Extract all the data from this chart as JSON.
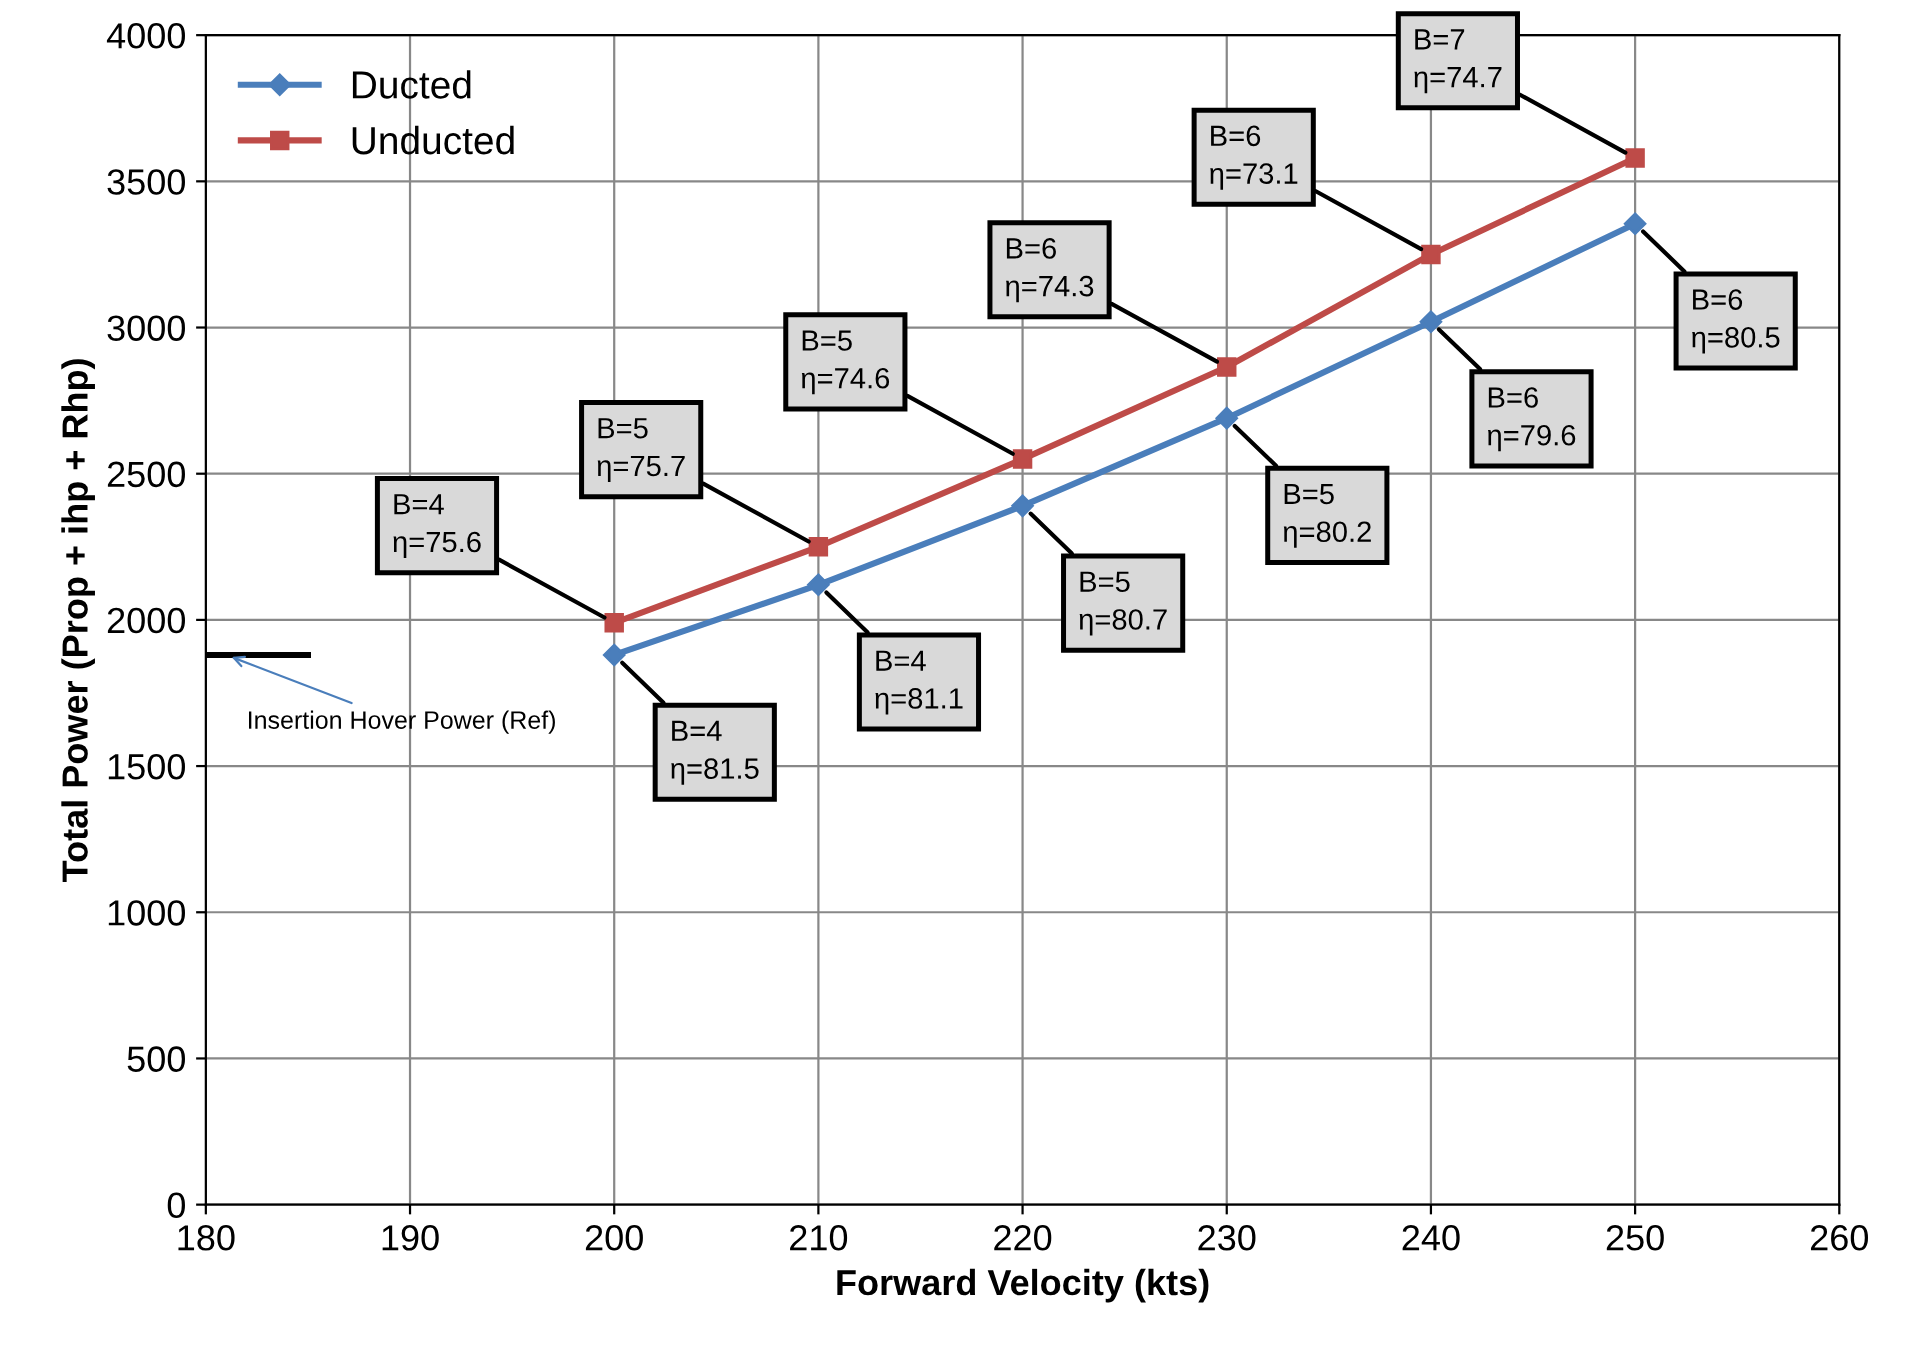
{
  "chart_data": {
    "type": "line",
    "xlabel": "Forward Velocity (kts)",
    "ylabel": "Total Power (Prop + ihp + Rhp)",
    "xlim": [
      180,
      260
    ],
    "xticks": [
      180,
      190,
      200,
      210,
      220,
      230,
      240,
      250,
      260
    ],
    "ylim": [
      0,
      4000
    ],
    "yticks": [
      0,
      500,
      1000,
      1500,
      2000,
      2500,
      3000,
      3500,
      4000
    ],
    "grid": true,
    "legend": "top left",
    "series": [
      {
        "name": "Ducted",
        "color": "#4a7ebb",
        "marker": "diamond",
        "x": [
          200,
          210,
          220,
          230,
          240,
          250
        ],
        "values": [
          1880,
          2120,
          2390,
          2690,
          3020,
          3355
        ]
      },
      {
        "name": "Unducted",
        "color": "#be4b48",
        "marker": "square",
        "x": [
          200,
          210,
          220,
          230,
          240,
          250
        ],
        "values": [
          1990,
          2250,
          2550,
          2865,
          3250,
          3580
        ]
      },
      {
        "color": "#000000",
        "marker": "none",
        "x": [
          180,
          185
        ],
        "values": [
          1880,
          1880
        ]
      }
    ],
    "annotations": [
      {
        "text": "B=4\nη=81.5",
        "x": 200,
        "y": 1880
      },
      {
        "text": "B=4\nη=81.1",
        "x": 210,
        "y": 2120
      },
      {
        "text": "B=5\nη=80.7",
        "x": 220,
        "y": 2390
      },
      {
        "text": "B=5\nη=80.2",
        "x": 230,
        "y": 2690
      },
      {
        "text": "B=6\nη=79.6",
        "x": 240,
        "y": 3020
      },
      {
        "text": "B=6\nη=80.5",
        "x": 250,
        "y": 3355
      },
      {
        "text": "B=4\nη=75.6",
        "x": 200,
        "y": 1990
      },
      {
        "text": "B=5\nη=75.7",
        "x": 210,
        "y": 2250
      },
      {
        "text": "B=5\nη=74.6",
        "x": 220,
        "y": 2550
      },
      {
        "text": "B=6\nη=74.3",
        "x": 230,
        "y": 2865
      },
      {
        "text": "B=6\nη=73.1",
        "x": 240,
        "y": 3250
      },
      {
        "text": "B=7\nη=74.7",
        "x": 250,
        "y": 3580
      },
      {
        "text": "Insertion Hover Power (Ref)",
        "x": 181,
        "y": 1880
      }
    ]
  }
}
